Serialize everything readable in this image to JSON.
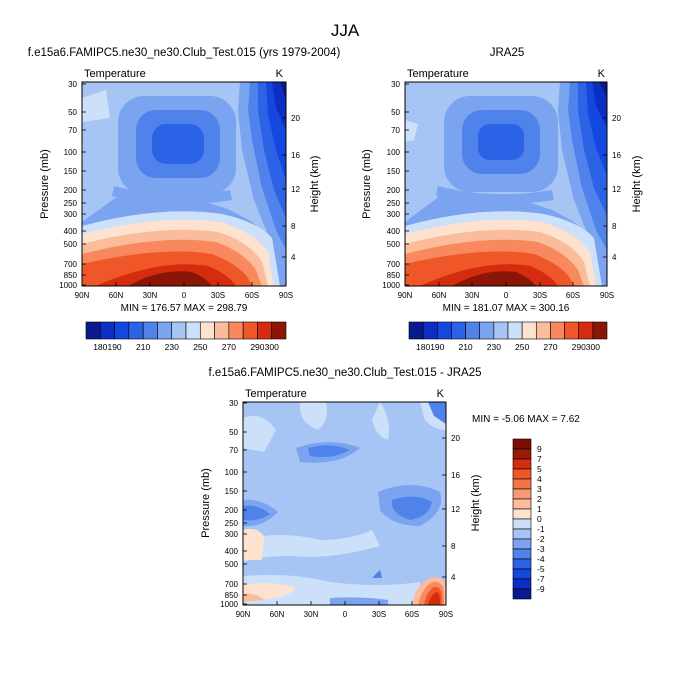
{
  "figure_title": "JJA",
  "chart_data": [
    {
      "type": "heatmap",
      "name": "model-panel",
      "title": "f.e15a6.FAMIPC5.ne30_ne30.Club_Test.015 (yrs 1979-2004)",
      "variable": "Temperature",
      "units": "K",
      "xlabel": "",
      "ylabel": "Pressure (mb)",
      "ylabel_right": "Height (km)",
      "x_ticks": [
        "90N",
        "60N",
        "30N",
        "0",
        "30S",
        "60S",
        "90S"
      ],
      "y_ticks": [
        30,
        50,
        70,
        100,
        150,
        200,
        250,
        300,
        400,
        500,
        700,
        850,
        1000
      ],
      "y_ticks_right": [
        4,
        8,
        12,
        16,
        20
      ],
      "y_scale": "log",
      "ylim": [
        1000,
        30
      ],
      "stats": "MIN = 176.57  MAX = 298.79",
      "min": 176.57,
      "max": 298.79,
      "levels": [
        180,
        190,
        200,
        210,
        220,
        230,
        240,
        250,
        260,
        270,
        280,
        290,
        300
      ],
      "colorbar_labels": [
        180,
        190,
        210,
        230,
        250,
        270,
        290,
        300
      ]
    },
    {
      "type": "heatmap",
      "name": "obs-panel",
      "title": "JRA25",
      "variable": "Temperature",
      "units": "K",
      "xlabel": "",
      "ylabel": "Pressure (mb)",
      "ylabel_right": "Height (km)",
      "x_ticks": [
        "90N",
        "60N",
        "30N",
        "0",
        "30S",
        "60S",
        "90S"
      ],
      "y_ticks": [
        30,
        50,
        70,
        100,
        150,
        200,
        250,
        300,
        400,
        500,
        700,
        850,
        1000
      ],
      "y_ticks_right": [
        4,
        8,
        12,
        16,
        20
      ],
      "y_scale": "log",
      "ylim": [
        1000,
        30
      ],
      "stats": "MIN = 181.07  MAX = 300.16",
      "min": 181.07,
      "max": 300.16,
      "levels": [
        180,
        190,
        200,
        210,
        220,
        230,
        240,
        250,
        260,
        270,
        280,
        290,
        300
      ],
      "colorbar_labels": [
        180,
        190,
        210,
        230,
        250,
        270,
        290,
        300
      ]
    },
    {
      "type": "heatmap",
      "name": "diff-panel",
      "title": "f.e15a6.FAMIPC5.ne30_ne30.Club_Test.015 - JRA25",
      "variable": "Temperature",
      "units": "K",
      "xlabel": "",
      "ylabel": "Pressure (mb)",
      "ylabel_right": "Height (km)",
      "x_ticks": [
        "90N",
        "60N",
        "30N",
        "0",
        "30S",
        "60S",
        "90S"
      ],
      "y_ticks": [
        30,
        50,
        70,
        100,
        150,
        200,
        250,
        300,
        400,
        500,
        700,
        850,
        1000
      ],
      "y_ticks_right": [
        4,
        8,
        12,
        16,
        20
      ],
      "y_scale": "log",
      "ylim": [
        1000,
        30
      ],
      "stats": "MIN =  -5.06  MAX =   7.62",
      "min": -5.06,
      "max": 7.62,
      "levels": [
        -9,
        -7,
        -5,
        -4,
        -3,
        -2,
        -1,
        0,
        1,
        2,
        3,
        4,
        5,
        7,
        9
      ],
      "colorbar_labels": [
        9,
        7,
        5,
        4,
        3,
        2,
        1,
        0,
        -1,
        -2,
        -3,
        -4,
        -5,
        -7,
        -9
      ]
    }
  ],
  "palettes": {
    "temperature": [
      "#0a1a8e",
      "#0c2ec4",
      "#1347e0",
      "#2b62e6",
      "#4f82ea",
      "#7aa4ef",
      "#a6c4f4",
      "#cde0fa",
      "#fde2d0",
      "#fbbc9b",
      "#f8895f",
      "#ef5628",
      "#d52b0e",
      "#8c1606"
    ],
    "difference": [
      "#0a1a8e",
      "#0c2ec4",
      "#1347e0",
      "#2b62e6",
      "#4f82ea",
      "#7aa4ef",
      "#a6c4f4",
      "#cde0fa",
      "#fde2d0",
      "#fbbc9b",
      "#f99a72",
      "#f57446",
      "#ef5628",
      "#d52b0e",
      "#9a1a08",
      "#7a0e05"
    ]
  }
}
